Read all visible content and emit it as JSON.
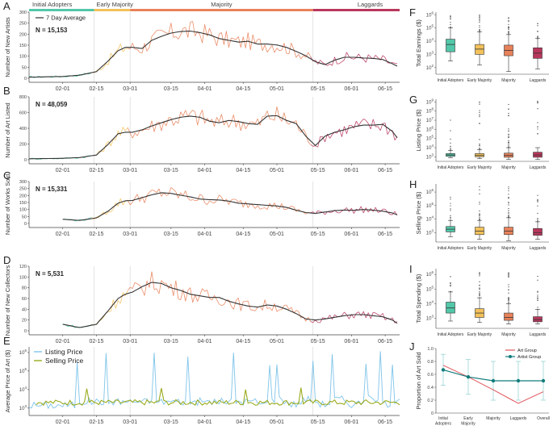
{
  "phases": [
    "Initial Adopters",
    "Early Majority",
    "Majority",
    "Laggards"
  ],
  "colors": {
    "Initial Adopters": "#52c7a9",
    "Early Majority": "#f2c15a",
    "Majority": "#e8825a",
    "Laggards": "#b8375c",
    "avg": "#333333",
    "listing": "#7fc4ea",
    "selling": "#9aab1c",
    "art_group": "#e0555d",
    "artist_group": "#137c7c"
  },
  "date_ticks": [
    "02-01",
    "02-15",
    "03-01",
    "03-15",
    "04-01",
    "04-15",
    "05-01",
    "05-15",
    "06-01",
    "06-15"
  ],
  "chart_data": [
    {
      "panel": "A",
      "type": "line",
      "ylabel": "Number of New Artists",
      "legend": [
        "7 Day Average"
      ],
      "annotation": "N = 15,153",
      "ylim": [
        0,
        300
      ],
      "yticks": [
        0,
        50,
        100,
        150,
        200,
        250,
        300
      ],
      "x_start": "01-18",
      "x_end": "06-20",
      "avg": [
        [
          0,
          5
        ],
        [
          14,
          8
        ],
        [
          21,
          14
        ],
        [
          28,
          30
        ],
        [
          33,
          80
        ],
        [
          37,
          125
        ],
        [
          40,
          140
        ],
        [
          43,
          140
        ],
        [
          47,
          135
        ],
        [
          51,
          172
        ],
        [
          55,
          190
        ],
        [
          59,
          205
        ],
        [
          63,
          212
        ],
        [
          67,
          214
        ],
        [
          71,
          207
        ],
        [
          75,
          197
        ],
        [
          79,
          180
        ],
        [
          83,
          172
        ],
        [
          87,
          164
        ],
        [
          91,
          168
        ],
        [
          95,
          155
        ],
        [
          99,
          155
        ],
        [
          103,
          151
        ],
        [
          107,
          140
        ],
        [
          111,
          122
        ],
        [
          115,
          102
        ],
        [
          119,
          75
        ],
        [
          123,
          62
        ],
        [
          127,
          82
        ],
        [
          131,
          95
        ],
        [
          135,
          95
        ],
        [
          139,
          92
        ],
        [
          143,
          90
        ],
        [
          147,
          85
        ],
        [
          151,
          66
        ],
        [
          153,
          55
        ]
      ]
    },
    {
      "panel": "B",
      "type": "line",
      "ylabel": "Number of Art Listed",
      "annotation": "N = 48,059",
      "ylim": [
        0,
        800
      ],
      "yticks": [
        0,
        200,
        400,
        600,
        800
      ],
      "x_start": "01-18",
      "x_end": "06-20",
      "avg": [
        [
          0,
          12
        ],
        [
          14,
          18
        ],
        [
          21,
          28
        ],
        [
          28,
          60
        ],
        [
          33,
          200
        ],
        [
          37,
          330
        ],
        [
          40,
          350
        ],
        [
          43,
          350
        ],
        [
          47,
          380
        ],
        [
          51,
          430
        ],
        [
          55,
          470
        ],
        [
          59,
          510
        ],
        [
          63,
          540
        ],
        [
          67,
          555
        ],
        [
          71,
          540
        ],
        [
          75,
          490
        ],
        [
          79,
          470
        ],
        [
          83,
          500
        ],
        [
          87,
          485
        ],
        [
          91,
          460
        ],
        [
          95,
          450
        ],
        [
          99,
          555
        ],
        [
          103,
          560
        ],
        [
          107,
          500
        ],
        [
          111,
          460
        ],
        [
          115,
          300
        ],
        [
          119,
          180
        ],
        [
          123,
          300
        ],
        [
          127,
          350
        ],
        [
          131,
          380
        ],
        [
          135,
          420
        ],
        [
          139,
          440
        ],
        [
          143,
          440
        ],
        [
          147,
          450
        ],
        [
          151,
          360
        ],
        [
          153,
          280
        ]
      ]
    },
    {
      "panel": "C",
      "type": "line",
      "ylabel": "Number of Works Sold",
      "annotation": "N = 15,331",
      "ylim": [
        0,
        300
      ],
      "yticks": [
        0,
        50,
        100,
        150,
        200,
        250,
        300
      ],
      "x_start": "01-18",
      "x_end": "06-20",
      "avg": [
        [
          14,
          30
        ],
        [
          21,
          22
        ],
        [
          28,
          40
        ],
        [
          33,
          90
        ],
        [
          37,
          145
        ],
        [
          40,
          162
        ],
        [
          43,
          165
        ],
        [
          47,
          185
        ],
        [
          51,
          205
        ],
        [
          55,
          220
        ],
        [
          59,
          215
        ],
        [
          63,
          202
        ],
        [
          67,
          190
        ],
        [
          71,
          175
        ],
        [
          75,
          170
        ],
        [
          79,
          168
        ],
        [
          83,
          160
        ],
        [
          87,
          145
        ],
        [
          91,
          140
        ],
        [
          95,
          135
        ],
        [
          99,
          130
        ],
        [
          103,
          125
        ],
        [
          107,
          115
        ],
        [
          111,
          95
        ],
        [
          115,
          78
        ],
        [
          119,
          72
        ],
        [
          123,
          82
        ],
        [
          127,
          92
        ],
        [
          131,
          96
        ],
        [
          135,
          94
        ],
        [
          139,
          100
        ],
        [
          143,
          95
        ],
        [
          147,
          88
        ],
        [
          151,
          75
        ],
        [
          153,
          62
        ]
      ]
    },
    {
      "panel": "D",
      "type": "line",
      "ylabel": "Number of New Collectors",
      "annotation": "N = 5,531",
      "ylim": [
        0,
        120
      ],
      "yticks": [
        0,
        20,
        40,
        60,
        80,
        100,
        120
      ],
      "x_start": "01-18",
      "x_end": "06-20",
      "avg": [
        [
          14,
          12
        ],
        [
          21,
          6
        ],
        [
          28,
          12
        ],
        [
          33,
          38
        ],
        [
          37,
          60
        ],
        [
          40,
          68
        ],
        [
          43,
          72
        ],
        [
          47,
          82
        ],
        [
          51,
          90
        ],
        [
          55,
          88
        ],
        [
          59,
          80
        ],
        [
          63,
          75
        ],
        [
          67,
          68
        ],
        [
          71,
          65
        ],
        [
          75,
          62
        ],
        [
          79,
          62
        ],
        [
          83,
          55
        ],
        [
          87,
          50
        ],
        [
          91,
          46
        ],
        [
          95,
          44
        ],
        [
          99,
          48
        ],
        [
          103,
          46
        ],
        [
          107,
          40
        ],
        [
          111,
          32
        ],
        [
          115,
          22
        ],
        [
          119,
          20
        ],
        [
          123,
          22
        ],
        [
          127,
          25
        ],
        [
          131,
          28
        ],
        [
          135,
          30
        ],
        [
          139,
          30
        ],
        [
          143,
          28
        ],
        [
          147,
          26
        ],
        [
          151,
          20
        ],
        [
          153,
          14
        ]
      ]
    },
    {
      "panel": "E",
      "type": "line",
      "ylabel": "Average Price of Art ($)",
      "scale": "log",
      "yticks": [
        "10^3",
        "10^4",
        "10^5",
        "10^6"
      ],
      "series": [
        {
          "name": "Listing Price"
        },
        {
          "name": "Selling Price"
        }
      ],
      "x_start": "01-18",
      "x_end": "06-20"
    },
    {
      "panel": "F",
      "type": "box",
      "ylabel": "Total Earnings ($)",
      "scale": "log",
      "yticks": [
        "10^2",
        "10^3",
        "10^4",
        "10^5",
        "10^6"
      ],
      "ylim_exp": [
        1.5,
        6.2
      ],
      "categories": [
        "Initial Adopters",
        "Early Majority",
        "Majority",
        "Laggards"
      ],
      "boxes": [
        [
          2.5,
          3.2,
          3.75,
          4.15,
          5.0
        ],
        [
          2.2,
          3.0,
          3.4,
          3.75,
          4.7
        ],
        [
          1.7,
          2.9,
          3.3,
          3.7,
          4.5
        ],
        [
          1.9,
          2.7,
          3.1,
          3.5,
          4.2
        ]
      ]
    },
    {
      "panel": "G",
      "type": "box",
      "ylabel": "Listing Price ($)",
      "scale": "log",
      "yticks": [
        "10^3",
        "10^4",
        "10^5",
        "10^6",
        "10^7",
        "10^8",
        "10^9"
      ],
      "ylim_exp": [
        2.5,
        9.3
      ],
      "categories": [
        "Initial Adopters",
        "Early Majority",
        "Majority",
        "Laggards"
      ],
      "boxes": [
        [
          2.9,
          3.05,
          3.2,
          3.35,
          3.7
        ],
        [
          2.8,
          3.0,
          3.15,
          3.35,
          3.8
        ],
        [
          2.7,
          2.95,
          3.15,
          3.4,
          4.0
        ],
        [
          2.7,
          2.95,
          3.2,
          3.5,
          4.0
        ]
      ]
    },
    {
      "panel": "H",
      "type": "box",
      "ylabel": "Selling Price ($)",
      "scale": "log",
      "yticks": [
        "10^3",
        "10^4",
        "10^5",
        "10^6"
      ],
      "ylim_exp": [
        2.3,
        6.6
      ],
      "categories": [
        "Initial Adopters",
        "Early Majority",
        "Majority",
        "Laggards"
      ],
      "boxes": [
        [
          2.7,
          3.05,
          3.25,
          3.45,
          3.9
        ],
        [
          2.5,
          2.85,
          3.1,
          3.4,
          3.9
        ],
        [
          2.4,
          2.85,
          3.1,
          3.4,
          4.1
        ],
        [
          2.5,
          2.8,
          3.0,
          3.3,
          3.8
        ]
      ]
    },
    {
      "panel": "I",
      "type": "box",
      "ylabel": "Total Spending ($)",
      "scale": "log",
      "yticks": [
        "10^3",
        "10^4",
        "10^5",
        "10^6"
      ],
      "ylim_exp": [
        2.3,
        6.4
      ],
      "categories": [
        "Initial Adopters",
        "Early Majority",
        "Majority",
        "Laggards"
      ],
      "boxes": [
        [
          2.8,
          3.35,
          3.7,
          4.1,
          4.8
        ],
        [
          2.7,
          3.05,
          3.35,
          3.65,
          4.4
        ],
        [
          2.6,
          2.85,
          3.05,
          3.35,
          4.0
        ],
        [
          2.6,
          2.75,
          2.9,
          3.1,
          3.6
        ]
      ]
    },
    {
      "panel": "J",
      "type": "line",
      "ylabel": "Proportion of Art Sold",
      "ylim": [
        0,
        1.0
      ],
      "yticks": [
        "0",
        "0.2",
        "0.4",
        "0.6",
        "0.8",
        "1.0"
      ],
      "categories": [
        "Initial\nAdopters",
        "Early\nMajority",
        "Majority",
        "Laggards",
        "Overall"
      ],
      "series": [
        {
          "name": "Art Group",
          "values": [
            0.74,
            0.56,
            0.36,
            0.15,
            0.33
          ]
        },
        {
          "name": "Artist Group",
          "values": [
            0.67,
            0.56,
            0.5,
            0.5,
            0.5
          ],
          "err": [
            0.24,
            0.27,
            0.3,
            0.3,
            0.3
          ]
        }
      ]
    }
  ]
}
